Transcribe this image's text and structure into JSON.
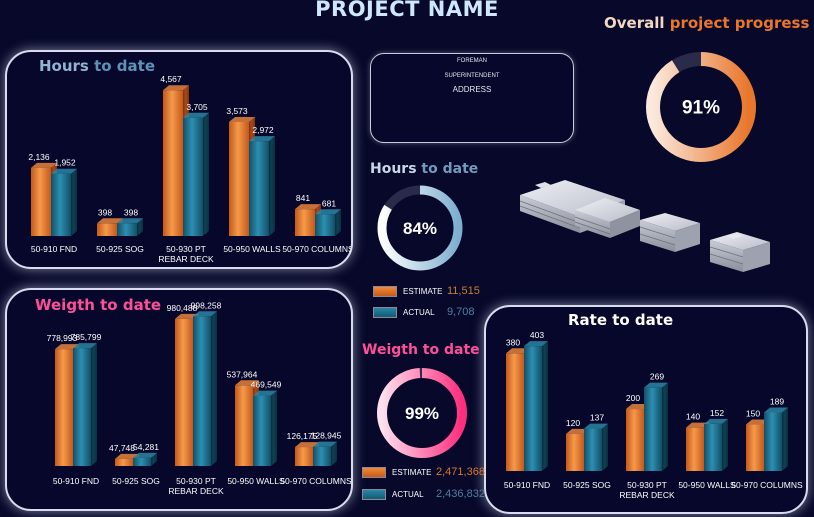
{
  "header": {
    "title": "PROJECT NAME"
  },
  "info_box": {
    "foreman": "FOREMAN",
    "superintendent": "SUPERINTENDENT",
    "address": "ADDRESS"
  },
  "colors": {
    "estimate": "#e8762b",
    "actual": "#1f6e8c",
    "pink": "#ff2e8a",
    "blue_title": "#8fb4cf",
    "orange_title": "#e8762b"
  },
  "overall": {
    "title_prefix": "Overall ",
    "title_highlight": "project progress",
    "percent": 0.91,
    "percent_label": "91%"
  },
  "hours_gauge": {
    "title_a": "Hours ",
    "title_b": "to date",
    "percent": 0.84,
    "percent_label": "84%",
    "estimate_label": "ESTIMATE",
    "estimate_value": "11,515",
    "actual_label": "ACTUAL",
    "actual_value": "9,708"
  },
  "weight_gauge": {
    "title": "Weigth to date",
    "percent": 0.99,
    "percent_label": "99%",
    "estimate_label": "ESTIMATE",
    "estimate_value": "2,471,368",
    "actual_label": "ACTUAL",
    "actual_value": "2,436,832"
  },
  "chart_data": [
    {
      "id": "hours",
      "type": "bar",
      "title_a": "Hours ",
      "title_b": "to date",
      "categories": [
        "50-910 FND",
        "50-925 SOG",
        "50-930 PT REBAR DECK",
        "50-950 WALLS",
        "50-970 COLUMNS"
      ],
      "series": [
        {
          "name": "Estimate",
          "values": [
            2136,
            398,
            4567,
            3573,
            841
          ],
          "labels": [
            "2,136",
            "398",
            "4,567",
            "3,573",
            "841"
          ]
        },
        {
          "name": "Actual",
          "values": [
            1952,
            398,
            3705,
            2972,
            681
          ],
          "labels": [
            "1,952",
            "398",
            "3,705",
            "2,972",
            "681"
          ]
        }
      ],
      "ylim": [
        0,
        4700
      ]
    },
    {
      "id": "weight",
      "type": "bar",
      "title": "Weigth to date",
      "categories": [
        "50-910 FND",
        "50-925 SOG",
        "50-930 PT REBAR DECK",
        "50-950 WALLS",
        "50-970 COLUMNS"
      ],
      "series": [
        {
          "name": "Estimate",
          "values": [
            778993,
            47748,
            980488,
            537964,
            126175
          ],
          "labels": [
            "778,993",
            "47,748",
            "980,488",
            "537,964",
            "126,175"
          ]
        },
        {
          "name": "Actual",
          "values": [
            785799,
            54281,
            998258,
            469549,
            128945
          ],
          "labels": [
            "785,799",
            "54,281",
            "998,258",
            "469,549",
            "128,945"
          ]
        }
      ],
      "ylim": [
        0,
        1000000
      ]
    },
    {
      "id": "rate",
      "type": "bar",
      "title": "Rate to date",
      "categories": [
        "50-910 FND",
        "50-925 SOG",
        "50-930 PT REBAR DECK",
        "50-950 WALLS",
        "50-970 COLUMNS"
      ],
      "series": [
        {
          "name": "Estimate",
          "values": [
            380,
            120,
            200,
            140,
            150
          ],
          "labels": [
            "380",
            "120",
            "200",
            "140",
            "150"
          ]
        },
        {
          "name": "Actual",
          "values": [
            403,
            137,
            269,
            152,
            189
          ],
          "labels": [
            "403",
            "137",
            "269",
            "152",
            "189"
          ]
        }
      ],
      "ylim": [
        0,
        410
      ]
    }
  ]
}
